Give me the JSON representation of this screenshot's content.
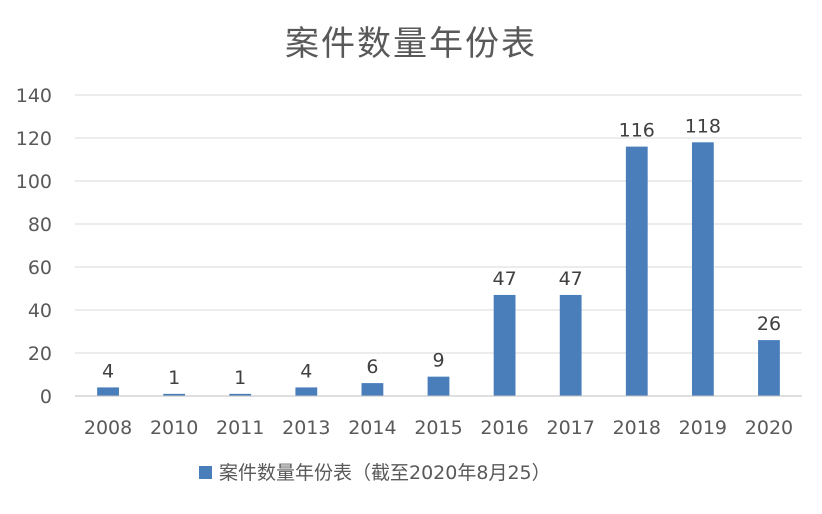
{
  "chart_data": {
    "type": "bar",
    "title": "案件数量年份表",
    "categories": [
      "2008",
      "2010",
      "2011",
      "2013",
      "2014",
      "2015",
      "2016",
      "2017",
      "2018",
      "2019",
      "2020"
    ],
    "series": [
      {
        "name": "案件数量年份表（截至2020年8月25）",
        "values": [
          4,
          1,
          1,
          4,
          6,
          9,
          47,
          47,
          116,
          118,
          26
        ],
        "color": "#4a7ebb"
      }
    ],
    "xlabel": "",
    "ylabel": "",
    "ylim": [
      0,
      140
    ],
    "yticks": [
      0,
      20,
      40,
      60,
      80,
      100,
      120,
      140
    ],
    "grid": true,
    "data_labels": true,
    "legend_position": "bottom"
  }
}
